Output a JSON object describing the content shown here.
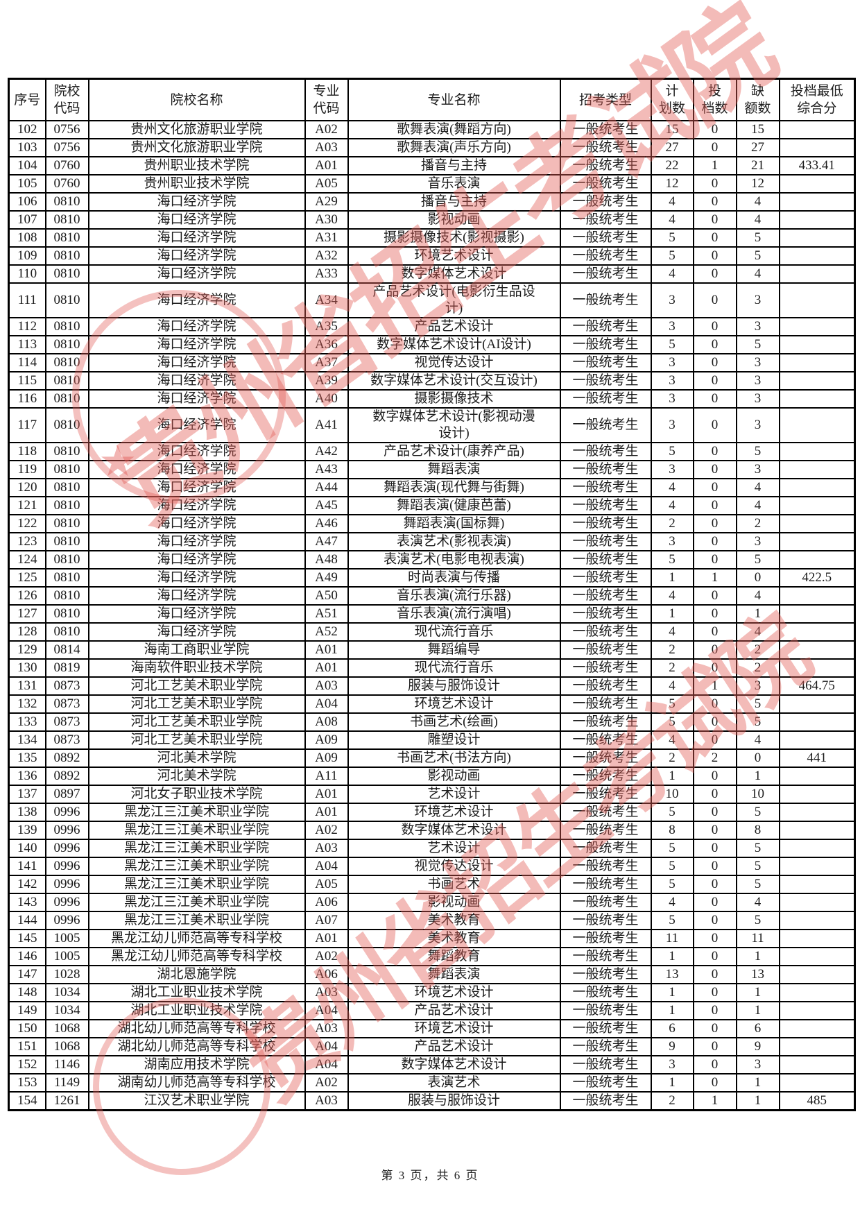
{
  "table": {
    "columns": [
      {
        "key": "no",
        "label": "序号"
      },
      {
        "key": "college-code",
        "label": "院校\n代码"
      },
      {
        "key": "college-name",
        "label": "院校名称"
      },
      {
        "key": "major-code",
        "label": "专业\n代码"
      },
      {
        "key": "major-name",
        "label": "专业名称"
      },
      {
        "key": "exam-type",
        "label": "招考类型"
      },
      {
        "key": "plan-count",
        "label": "计\n划数"
      },
      {
        "key": "filed-count",
        "label": "投\n档数"
      },
      {
        "key": "vacancy-count",
        "label": "缺\n额数"
      },
      {
        "key": "min-score",
        "label": "投档最低\n综合分"
      }
    ],
    "rows": [
      [
        "102",
        "0756",
        "贵州文化旅游职业学院",
        "A02",
        "歌舞表演(舞蹈方向)",
        "一般统考生",
        "15",
        "0",
        "15",
        ""
      ],
      [
        "103",
        "0756",
        "贵州文化旅游职业学院",
        "A03",
        "歌舞表演(声乐方向)",
        "一般统考生",
        "27",
        "0",
        "27",
        ""
      ],
      [
        "104",
        "0760",
        "贵州职业技术学院",
        "A01",
        "播音与主持",
        "一般统考生",
        "22",
        "1",
        "21",
        "433.41"
      ],
      [
        "105",
        "0760",
        "贵州职业技术学院",
        "A05",
        "音乐表演",
        "一般统考生",
        "12",
        "0",
        "12",
        ""
      ],
      [
        "106",
        "0810",
        "海口经济学院",
        "A29",
        "播音与主持",
        "一般统考生",
        "4",
        "0",
        "4",
        ""
      ],
      [
        "107",
        "0810",
        "海口经济学院",
        "A30",
        "影视动画",
        "一般统考生",
        "4",
        "0",
        "4",
        ""
      ],
      [
        "108",
        "0810",
        "海口经济学院",
        "A31",
        "摄影摄像技术(影视摄影)",
        "一般统考生",
        "5",
        "0",
        "5",
        ""
      ],
      [
        "109",
        "0810",
        "海口经济学院",
        "A32",
        "环境艺术设计",
        "一般统考生",
        "5",
        "0",
        "5",
        ""
      ],
      [
        "110",
        "0810",
        "海口经济学院",
        "A33",
        "数字媒体艺术设计",
        "一般统考生",
        "4",
        "0",
        "4",
        ""
      ],
      [
        "111",
        "0810",
        "海口经济学院",
        "A34",
        "产品艺术设计(电影衍生品设\n计)",
        "一般统考生",
        "3",
        "0",
        "3",
        ""
      ],
      [
        "112",
        "0810",
        "海口经济学院",
        "A35",
        "产品艺术设计",
        "一般统考生",
        "3",
        "0",
        "3",
        ""
      ],
      [
        "113",
        "0810",
        "海口经济学院",
        "A36",
        "数字媒体艺术设计(AI设计)",
        "一般统考生",
        "5",
        "0",
        "5",
        ""
      ],
      [
        "114",
        "0810",
        "海口经济学院",
        "A37",
        "视觉传达设计",
        "一般统考生",
        "3",
        "0",
        "3",
        ""
      ],
      [
        "115",
        "0810",
        "海口经济学院",
        "A39",
        "数字媒体艺术设计(交互设计)",
        "一般统考生",
        "3",
        "0",
        "3",
        ""
      ],
      [
        "116",
        "0810",
        "海口经济学院",
        "A40",
        "摄影摄像技术",
        "一般统考生",
        "3",
        "0",
        "3",
        ""
      ],
      [
        "117",
        "0810",
        "海口经济学院",
        "A41",
        "数字媒体艺术设计(影视动漫\n设计)",
        "一般统考生",
        "3",
        "0",
        "3",
        ""
      ],
      [
        "118",
        "0810",
        "海口经济学院",
        "A42",
        "产品艺术设计(康养产品)",
        "一般统考生",
        "5",
        "0",
        "5",
        ""
      ],
      [
        "119",
        "0810",
        "海口经济学院",
        "A43",
        "舞蹈表演",
        "一般统考生",
        "3",
        "0",
        "3",
        ""
      ],
      [
        "120",
        "0810",
        "海口经济学院",
        "A44",
        "舞蹈表演(现代舞与街舞)",
        "一般统考生",
        "4",
        "0",
        "4",
        ""
      ],
      [
        "121",
        "0810",
        "海口经济学院",
        "A45",
        "舞蹈表演(健康芭蕾)",
        "一般统考生",
        "4",
        "0",
        "4",
        ""
      ],
      [
        "122",
        "0810",
        "海口经济学院",
        "A46",
        "舞蹈表演(国标舞)",
        "一般统考生",
        "2",
        "0",
        "2",
        ""
      ],
      [
        "123",
        "0810",
        "海口经济学院",
        "A47",
        "表演艺术(影视表演)",
        "一般统考生",
        "3",
        "0",
        "3",
        ""
      ],
      [
        "124",
        "0810",
        "海口经济学院",
        "A48",
        "表演艺术(电影电视表演)",
        "一般统考生",
        "5",
        "0",
        "5",
        ""
      ],
      [
        "125",
        "0810",
        "海口经济学院",
        "A49",
        "时尚表演与传播",
        "一般统考生",
        "1",
        "1",
        "0",
        "422.5"
      ],
      [
        "126",
        "0810",
        "海口经济学院",
        "A50",
        "音乐表演(流行乐器)",
        "一般统考生",
        "4",
        "0",
        "4",
        ""
      ],
      [
        "127",
        "0810",
        "海口经济学院",
        "A51",
        "音乐表演(流行演唱)",
        "一般统考生",
        "1",
        "0",
        "1",
        ""
      ],
      [
        "128",
        "0810",
        "海口经济学院",
        "A52",
        "现代流行音乐",
        "一般统考生",
        "4",
        "0",
        "4",
        ""
      ],
      [
        "129",
        "0814",
        "海南工商职业学院",
        "A01",
        "舞蹈编导",
        "一般统考生",
        "2",
        "0",
        "2",
        ""
      ],
      [
        "130",
        "0819",
        "海南软件职业技术学院",
        "A01",
        "现代流行音乐",
        "一般统考生",
        "2",
        "0",
        "2",
        ""
      ],
      [
        "131",
        "0873",
        "河北工艺美术职业学院",
        "A03",
        "服装与服饰设计",
        "一般统考生",
        "4",
        "1",
        "3",
        "464.75"
      ],
      [
        "132",
        "0873",
        "河北工艺美术职业学院",
        "A04",
        "环境艺术设计",
        "一般统考生",
        "5",
        "0",
        "5",
        ""
      ],
      [
        "133",
        "0873",
        "河北工艺美术职业学院",
        "A08",
        "书画艺术(绘画)",
        "一般统考生",
        "5",
        "0",
        "5",
        ""
      ],
      [
        "134",
        "0873",
        "河北工艺美术职业学院",
        "A09",
        "雕塑设计",
        "一般统考生",
        "4",
        "0",
        "4",
        ""
      ],
      [
        "135",
        "0892",
        "河北美术学院",
        "A09",
        "书画艺术(书法方向)",
        "一般统考生",
        "2",
        "2",
        "0",
        "441"
      ],
      [
        "136",
        "0892",
        "河北美术学院",
        "A11",
        "影视动画",
        "一般统考生",
        "1",
        "0",
        "1",
        ""
      ],
      [
        "137",
        "0897",
        "河北女子职业技术学院",
        "A01",
        "艺术设计",
        "一般统考生",
        "10",
        "0",
        "10",
        ""
      ],
      [
        "138",
        "0996",
        "黑龙江三江美术职业学院",
        "A01",
        "环境艺术设计",
        "一般统考生",
        "5",
        "0",
        "5",
        ""
      ],
      [
        "139",
        "0996",
        "黑龙江三江美术职业学院",
        "A02",
        "数字媒体艺术设计",
        "一般统考生",
        "8",
        "0",
        "8",
        ""
      ],
      [
        "140",
        "0996",
        "黑龙江三江美术职业学院",
        "A03",
        "艺术设计",
        "一般统考生",
        "5",
        "0",
        "5",
        ""
      ],
      [
        "141",
        "0996",
        "黑龙江三江美术职业学院",
        "A04",
        "视觉传达设计",
        "一般统考生",
        "5",
        "0",
        "5",
        ""
      ],
      [
        "142",
        "0996",
        "黑龙江三江美术职业学院",
        "A05",
        "书画艺术",
        "一般统考生",
        "5",
        "0",
        "5",
        ""
      ],
      [
        "143",
        "0996",
        "黑龙江三江美术职业学院",
        "A06",
        "影视动画",
        "一般统考生",
        "4",
        "0",
        "4",
        ""
      ],
      [
        "144",
        "0996",
        "黑龙江三江美术职业学院",
        "A07",
        "美术教育",
        "一般统考生",
        "5",
        "0",
        "5",
        ""
      ],
      [
        "145",
        "1005",
        "黑龙江幼儿师范高等专科学校",
        "A01",
        "美术教育",
        "一般统考生",
        "11",
        "0",
        "11",
        ""
      ],
      [
        "146",
        "1005",
        "黑龙江幼儿师范高等专科学校",
        "A02",
        "舞蹈教育",
        "一般统考生",
        "1",
        "0",
        "1",
        ""
      ],
      [
        "147",
        "1028",
        "湖北恩施学院",
        "A06",
        "舞蹈表演",
        "一般统考生",
        "13",
        "0",
        "13",
        ""
      ],
      [
        "148",
        "1034",
        "湖北工业职业技术学院",
        "A03",
        "环境艺术设计",
        "一般统考生",
        "1",
        "0",
        "1",
        ""
      ],
      [
        "149",
        "1034",
        "湖北工业职业技术学院",
        "A04",
        "产品艺术设计",
        "一般统考生",
        "1",
        "0",
        "1",
        ""
      ],
      [
        "150",
        "1068",
        "湖北幼儿师范高等专科学校",
        "A03",
        "环境艺术设计",
        "一般统考生",
        "6",
        "0",
        "6",
        ""
      ],
      [
        "151",
        "1068",
        "湖北幼儿师范高等专科学校",
        "A04",
        "产品艺术设计",
        "一般统考生",
        "9",
        "0",
        "9",
        ""
      ],
      [
        "152",
        "1146",
        "湖南应用技术学院",
        "A04",
        "数字媒体艺术设计",
        "一般统考生",
        "3",
        "0",
        "3",
        ""
      ],
      [
        "153",
        "1149",
        "湖南幼儿师范高等专科学校",
        "A02",
        "表演艺术",
        "一般统考生",
        "1",
        "0",
        "1",
        ""
      ],
      [
        "154",
        "1261",
        "江汉艺术职业学院",
        "A03",
        "服装与服饰设计",
        "一般统考生",
        "2",
        "1",
        "1",
        "485"
      ]
    ]
  },
  "footer": {
    "page_text": "第 3 页，共 6 页"
  },
  "watermark": {
    "text": "贵州省招生考试院",
    "color": "#e25c56",
    "star_glyph": "★"
  }
}
